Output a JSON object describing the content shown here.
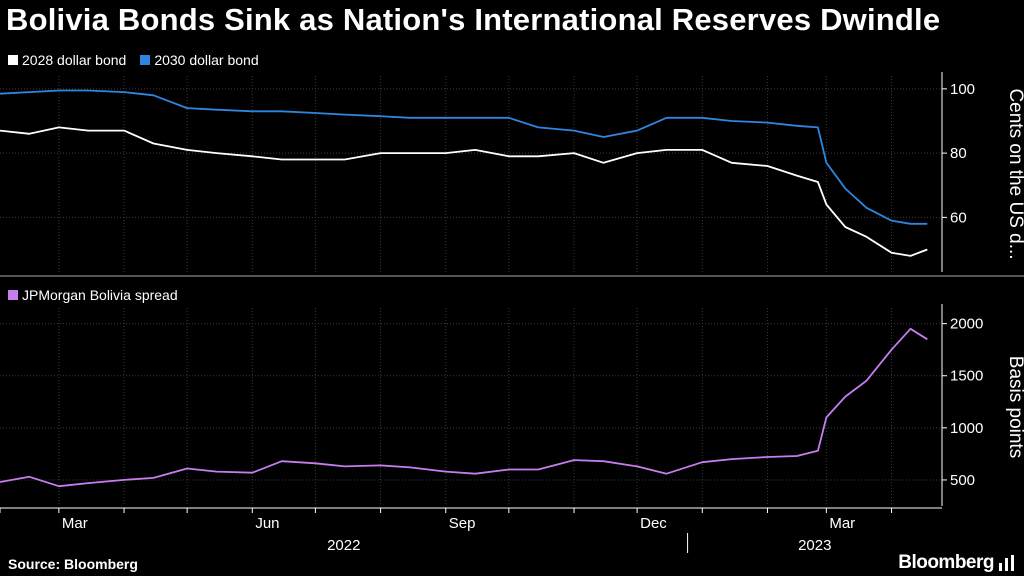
{
  "title": "Bolivia Bonds Sink as Nation's International Reserves Dwindle",
  "source": "Source: Bloomberg",
  "brand": "Bloomberg",
  "colors": {
    "bond2028": "#ffffff",
    "bond2030": "#2e86e0",
    "spread": "#c77dee",
    "grid": "#3a3a3a",
    "divider": "#555555"
  },
  "x_axis": {
    "tick_labels": [
      "Mar",
      "Jun",
      "Sep",
      "Dec",
      "Mar"
    ],
    "tick_dates": [
      "2022-03-01",
      "2022-06-01",
      "2022-09-01",
      "2022-12-01",
      "2023-03-01"
    ],
    "year_labels": [
      "2022",
      "2023"
    ]
  },
  "chart_data": [
    {
      "type": "line",
      "ylabel": "Cents on the US d...",
      "ylim": [
        43,
        104
      ],
      "yticks": [
        60,
        80,
        100
      ],
      "legend": "top-left",
      "grid": true,
      "x": [
        "2022-02-01",
        "2022-02-15",
        "2022-03-01",
        "2022-03-15",
        "2022-04-01",
        "2022-04-15",
        "2022-05-01",
        "2022-05-15",
        "2022-06-01",
        "2022-06-15",
        "2022-07-01",
        "2022-07-15",
        "2022-08-01",
        "2022-08-15",
        "2022-09-01",
        "2022-09-15",
        "2022-10-01",
        "2022-10-15",
        "2022-11-01",
        "2022-11-15",
        "2022-12-01",
        "2022-12-15",
        "2023-01-01",
        "2023-01-15",
        "2023-02-01",
        "2023-02-15",
        "2023-02-25",
        "2023-03-01",
        "2023-03-10",
        "2023-03-20",
        "2023-04-01",
        "2023-04-10",
        "2023-04-18"
      ],
      "series": [
        {
          "name": "2028 dollar bond",
          "values": [
            87,
            86,
            88,
            87,
            87,
            83,
            81,
            80,
            79,
            78,
            78,
            78,
            80,
            80,
            80,
            81,
            79,
            79,
            80,
            77,
            80,
            81,
            81,
            77,
            76,
            73,
            71,
            64,
            57,
            54,
            49,
            48,
            50
          ]
        },
        {
          "name": "2030 dollar bond",
          "values": [
            98.5,
            99,
            99.5,
            99.5,
            99,
            98,
            94,
            93.5,
            93,
            93,
            92.5,
            92,
            91.5,
            91,
            91,
            91,
            91,
            88,
            87,
            85,
            87,
            91,
            91,
            90,
            89.5,
            88.5,
            88,
            77,
            69,
            63,
            59,
            58,
            58
          ]
        }
      ]
    },
    {
      "type": "line",
      "ylabel": "Basis points",
      "ylim": [
        250,
        2150
      ],
      "yticks": [
        500,
        1000,
        1500,
        2000
      ],
      "legend": "top-left",
      "grid": true,
      "x": [
        "2022-02-01",
        "2022-02-15",
        "2022-03-01",
        "2022-03-15",
        "2022-04-01",
        "2022-04-15",
        "2022-05-01",
        "2022-05-15",
        "2022-06-01",
        "2022-06-15",
        "2022-07-01",
        "2022-07-15",
        "2022-08-01",
        "2022-08-15",
        "2022-09-01",
        "2022-09-15",
        "2022-10-01",
        "2022-10-15",
        "2022-11-01",
        "2022-11-15",
        "2022-12-01",
        "2022-12-15",
        "2023-01-01",
        "2023-01-15",
        "2023-02-01",
        "2023-02-15",
        "2023-02-25",
        "2023-03-01",
        "2023-03-10",
        "2023-03-20",
        "2023-04-01",
        "2023-04-10",
        "2023-04-18"
      ],
      "series": [
        {
          "name": "JPMorgan Bolivia spread",
          "values": [
            480,
            530,
            440,
            470,
            500,
            520,
            610,
            580,
            570,
            680,
            660,
            630,
            640,
            620,
            580,
            560,
            600,
            600,
            690,
            680,
            630,
            560,
            670,
            700,
            720,
            730,
            780,
            1100,
            1300,
            1450,
            1750,
            1950,
            1850
          ]
        }
      ]
    }
  ]
}
